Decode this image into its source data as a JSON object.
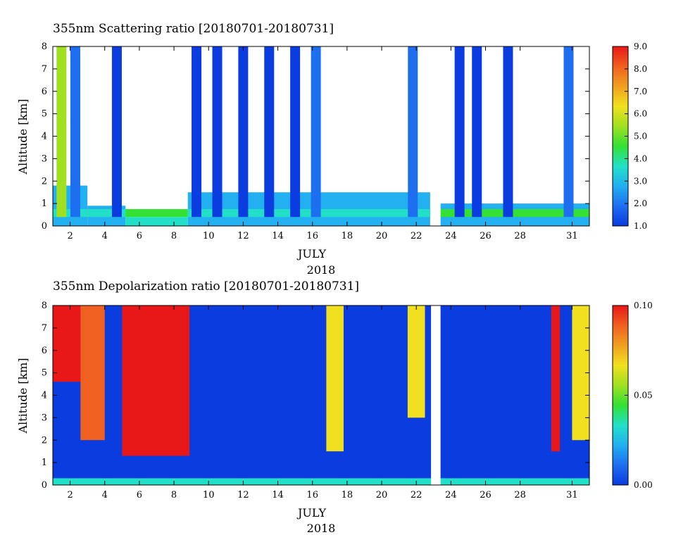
{
  "chart_data": [
    {
      "type": "heatmap",
      "title": "355nm Scattering ratio [20180701-20180731]",
      "ylabel": "Altitude [km]",
      "xlabel": "JULY",
      "xlabel2": "2018",
      "x_range": [
        1,
        32
      ],
      "ylim": [
        0,
        8
      ],
      "x_ticks": [
        2,
        4,
        6,
        8,
        10,
        12,
        14,
        16,
        18,
        20,
        22,
        24,
        26,
        28,
        31
      ],
      "x_tick_labels": [
        "2",
        "4",
        "6",
        "8",
        "10",
        "12",
        "14",
        "16",
        "18",
        "20",
        "22",
        "24",
        "26",
        "28",
        "31"
      ],
      "y_ticks": [
        0,
        1,
        2,
        3,
        4,
        5,
        6,
        7,
        8
      ],
      "y_tick_labels": [
        "0",
        "1",
        "2",
        "3",
        "4",
        "5",
        "6",
        "7",
        "8"
      ],
      "colorbar": {
        "min": 1.0,
        "max": 9.0,
        "ticks": [
          1.0,
          2.0,
          3.0,
          4.0,
          5.0,
          6.0,
          7.0,
          8.0,
          9.0
        ],
        "tick_labels": [
          "1.0",
          "2.0",
          "3.0",
          "4.0",
          "5.0",
          "6.0",
          "7.0",
          "8.0",
          "9.0"
        ]
      },
      "data_gaps_days": [
        [
          22.85,
          23.4
        ]
      ],
      "cloud_columns": [
        {
          "day": 1.5,
          "top_km": 8.0,
          "value": 5.0
        },
        {
          "day": 2.3,
          "top_km": 8.0,
          "value": 2.5
        },
        {
          "day": 4.7,
          "top_km": 8.0,
          "value": 1.6
        },
        {
          "day": 9.3,
          "top_km": 8.0,
          "value": 1.6
        },
        {
          "day": 10.5,
          "top_km": 8.0,
          "value": 1.5
        },
        {
          "day": 12.0,
          "top_km": 8.0,
          "value": 1.6
        },
        {
          "day": 13.5,
          "top_km": 8.0,
          "value": 1.5
        },
        {
          "day": 15.0,
          "top_km": 8.0,
          "value": 1.6
        },
        {
          "day": 16.2,
          "top_km": 8.0,
          "value": 1.8
        },
        {
          "day": 21.8,
          "top_km": 8.0,
          "value": 2.2
        },
        {
          "day": 24.5,
          "top_km": 8.0,
          "value": 1.6
        },
        {
          "day": 25.5,
          "top_km": 8.0,
          "value": 1.6
        },
        {
          "day": 27.3,
          "top_km": 8.0,
          "value": 1.6
        },
        {
          "day": 30.8,
          "top_km": 8.0,
          "value": 2.5
        }
      ],
      "boundary_layer": [
        {
          "day_start": 1.0,
          "day_end": 3.0,
          "top_km": 1.8,
          "value": 2.6
        },
        {
          "day_start": 3.0,
          "day_end": 5.2,
          "top_km": 0.9,
          "value": 2.8
        },
        {
          "day_start": 5.2,
          "day_end": 8.8,
          "top_km": 0.4,
          "value": 3.6
        },
        {
          "day_start": 8.8,
          "day_end": 22.8,
          "top_km": 1.5,
          "value": 3.0
        },
        {
          "day_start": 23.4,
          "day_end": 32.0,
          "top_km": 1.0,
          "value": 3.2
        }
      ]
    },
    {
      "type": "heatmap",
      "title": "355nm Depolarization ratio [20180701-20180731]",
      "ylabel": "Altitude [km]",
      "xlabel": "JULY",
      "xlabel2": "2018",
      "x_range": [
        1,
        32
      ],
      "ylim": [
        0,
        8
      ],
      "x_ticks": [
        2,
        4,
        6,
        8,
        10,
        12,
        14,
        16,
        18,
        20,
        22,
        24,
        26,
        28,
        31
      ],
      "x_tick_labels": [
        "2",
        "4",
        "6",
        "8",
        "10",
        "12",
        "14",
        "16",
        "18",
        "20",
        "22",
        "24",
        "26",
        "28",
        "31"
      ],
      "y_ticks": [
        0,
        1,
        2,
        3,
        4,
        5,
        6,
        7,
        8
      ],
      "y_tick_labels": [
        "0",
        "1",
        "2",
        "3",
        "4",
        "5",
        "6",
        "7",
        "8"
      ],
      "colorbar": {
        "min": 0.0,
        "max": 0.1,
        "ticks": [
          0.0,
          0.05,
          0.1
        ],
        "tick_labels": [
          "0.00",
          "0.05",
          "0.10"
        ]
      },
      "data_gaps_days": [
        [
          22.85,
          23.4
        ]
      ],
      "high_depol_regions": [
        {
          "day_start": 1.0,
          "day_end": 2.6,
          "bottom_km": 4.6,
          "top_km": 8.0,
          "value": 0.09
        },
        {
          "day_start": 2.6,
          "day_end": 4.0,
          "bottom_km": 2.0,
          "top_km": 8.0,
          "value": 0.085
        },
        {
          "day_start": 5.0,
          "day_end": 8.9,
          "bottom_km": 1.3,
          "top_km": 8.0,
          "value": 0.092
        },
        {
          "day_start": 16.8,
          "day_end": 17.8,
          "bottom_km": 1.5,
          "top_km": 8.0,
          "value": 0.06
        },
        {
          "day_start": 21.5,
          "day_end": 22.5,
          "bottom_km": 3.0,
          "top_km": 8.0,
          "value": 0.065
        },
        {
          "day_start": 29.8,
          "day_end": 30.3,
          "bottom_km": 1.5,
          "top_km": 8.0,
          "value": 0.09
        },
        {
          "day_start": 31.0,
          "day_end": 32.0,
          "bottom_km": 2.0,
          "top_km": 8.0,
          "value": 0.06
        }
      ],
      "background_value": 0.01
    }
  ],
  "colormap": [
    "#0a3ce0",
    "#1e6ef0",
    "#22b0f0",
    "#22e0c8",
    "#33e033",
    "#a0e020",
    "#f0e020",
    "#f0a020",
    "#f06020",
    "#e81818"
  ]
}
